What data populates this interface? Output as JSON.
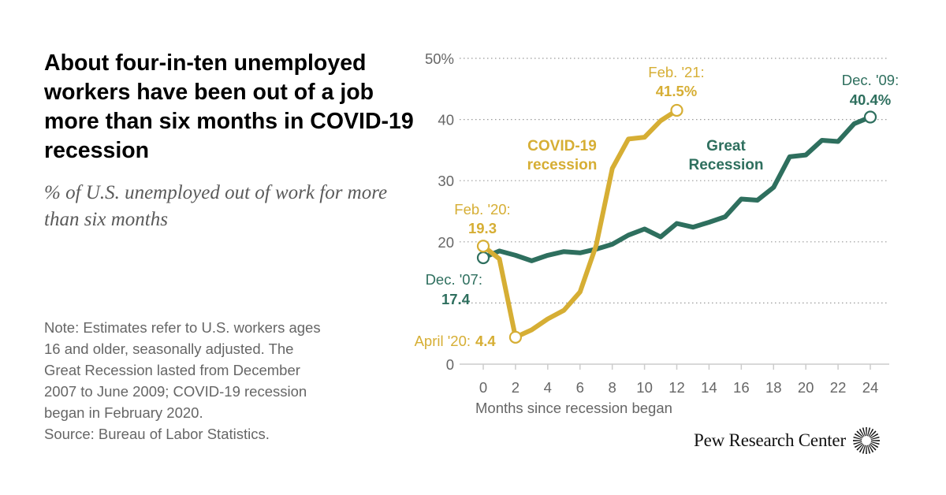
{
  "title": "About four-in-ten unemployed workers have been out of a job more than six months in COVID-19 recession",
  "subtitle": "% of U.S. unemployed out of work for more than six months",
  "note_lines": [
    "Note: Estimates refer to U.S. workers ages",
    "16 and older, seasonally adjusted. The",
    "Great Recession lasted from December",
    "2007 to June 2009; COVID-19 recession",
    "began in February 2020.",
    "Source: Bureau of Labor Statistics."
  ],
  "logo": {
    "text": "Pew Research Center",
    "icon": "pew-sunburst-icon"
  },
  "chart_data": {
    "type": "line",
    "xlabel": "Months since recession began",
    "ylabel": "",
    "xlim": [
      0,
      24
    ],
    "ylim": [
      0,
      50
    ],
    "x_ticks": [
      0,
      2,
      4,
      6,
      8,
      10,
      12,
      14,
      16,
      18,
      20,
      22,
      24
    ],
    "y_ticks": [
      0,
      10,
      20,
      30,
      40,
      50
    ],
    "y_tick_labels": [
      "0",
      "",
      "20",
      "30",
      "40",
      "50%"
    ],
    "grid": "dotted horizontal",
    "series": [
      {
        "name": "Great Recession",
        "label_lines": [
          "Great",
          "Recession"
        ],
        "color": "#2e6f5e",
        "x": [
          0,
          1,
          2,
          3,
          4,
          5,
          6,
          7,
          8,
          9,
          10,
          11,
          12,
          13,
          14,
          15,
          16,
          17,
          18,
          19,
          20,
          21,
          22,
          23,
          24
        ],
        "values": [
          17.4,
          18.5,
          17.8,
          16.9,
          17.8,
          18.4,
          18.2,
          18.8,
          19.6,
          21.1,
          22.1,
          20.8,
          23.0,
          22.4,
          23.2,
          24.1,
          27.0,
          26.8,
          28.9,
          33.9,
          34.2,
          36.6,
          36.4,
          39.3,
          40.4
        ],
        "annotations": [
          {
            "x": 0,
            "y": 17.4,
            "lines": [
              "Dec. '07:",
              "17.4"
            ]
          },
          {
            "x": 24,
            "y": 40.4,
            "lines": [
              "Dec. '09:",
              "40.4%"
            ]
          }
        ]
      },
      {
        "name": "COVID-19 recession",
        "label_lines": [
          "COVID-19",
          "recession"
        ],
        "color": "#d6ae34",
        "x": [
          0,
          1,
          2,
          3,
          4,
          5,
          6,
          7,
          8,
          9,
          10,
          11,
          12
        ],
        "values": [
          19.3,
          17.2,
          4.4,
          5.6,
          7.4,
          8.8,
          11.8,
          19.4,
          32.0,
          36.8,
          37.1,
          39.8,
          41.5
        ],
        "annotations": [
          {
            "x": 0,
            "y": 19.3,
            "lines": [
              "Feb. '20:",
              "19.3"
            ]
          },
          {
            "x": 2,
            "y": 4.4,
            "lines": [
              "April '20:",
              "4.4"
            ]
          },
          {
            "x": 12,
            "y": 41.5,
            "lines": [
              "Feb. '21:",
              "41.5%"
            ]
          }
        ]
      }
    ]
  }
}
